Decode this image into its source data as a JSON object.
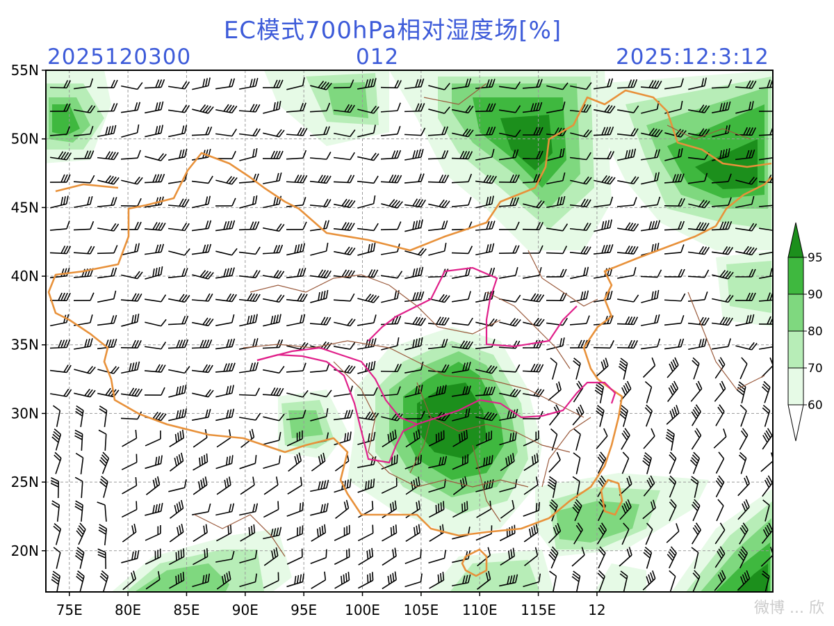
{
  "header": {
    "title": "EC模式700hPa相对湿度场[%]",
    "init_time": "2025120300",
    "forecast_hour": "012",
    "valid_time": "2025:12:3:12"
  },
  "map": {
    "lon_range": [
      73,
      135
    ],
    "lat_range": [
      17,
      55
    ],
    "x_ticks": [
      "75E",
      "80E",
      "85E",
      "90E",
      "95E",
      "100E",
      "105E",
      "110E",
      "115E",
      "12"
    ],
    "y_ticks": [
      "55N",
      "50N",
      "45N",
      "40N",
      "35N",
      "30N",
      "25N",
      "20N"
    ],
    "grid": true,
    "grid_style": "dashed"
  },
  "colorbar": {
    "levels": [
      "60",
      "70",
      "80",
      "90",
      "95"
    ],
    "colors": [
      "#e6fae6",
      "#b7edb7",
      "#7fd87f",
      "#3fb83f",
      "#1c8f1c"
    ]
  },
  "colors": {
    "header_text": "#3d5bd9",
    "country_border": "#e8913a",
    "province_border": "#9a5a3c",
    "highlight_border": "#e0208a",
    "wind_barb": "#000000"
  },
  "watermark": "微博 ... 欣"
}
